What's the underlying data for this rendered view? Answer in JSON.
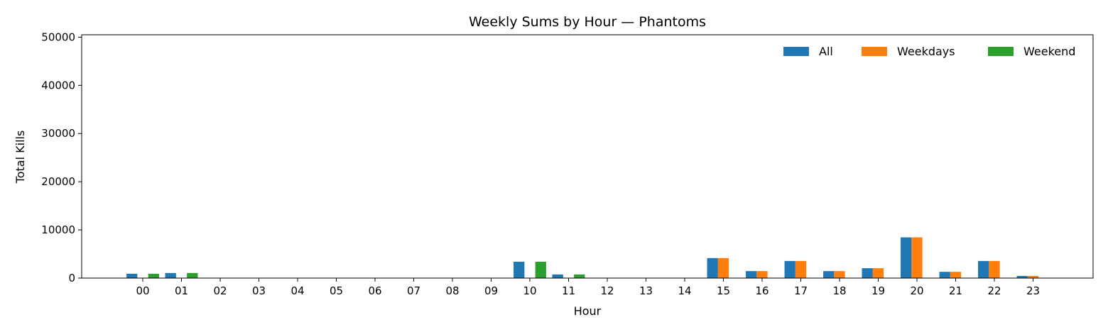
{
  "chart_data": {
    "type": "bar",
    "title": "Weekly Sums by Hour — Phantoms",
    "xlabel": "Hour",
    "ylabel": "Total Kills",
    "ylim": [
      0,
      50500
    ],
    "yticks": [
      0,
      10000,
      20000,
      30000,
      40000,
      50000
    ],
    "grid": false,
    "legend_position": "top-right",
    "categories": [
      "00",
      "01",
      "02",
      "03",
      "04",
      "05",
      "06",
      "07",
      "08",
      "09",
      "10",
      "11",
      "12",
      "13",
      "14",
      "15",
      "16",
      "17",
      "18",
      "19",
      "20",
      "21",
      "22",
      "23"
    ],
    "series": [
      {
        "name": "All",
        "color": "#1f77b4",
        "values": [
          900,
          1050,
          0,
          0,
          0,
          0,
          0,
          0,
          0,
          0,
          3400,
          750,
          0,
          0,
          0,
          4150,
          1450,
          3550,
          1450,
          2050,
          8450,
          1300,
          3550,
          450
        ]
      },
      {
        "name": "Weekdays",
        "color": "#ff7f0e",
        "values": [
          0,
          0,
          0,
          0,
          0,
          0,
          0,
          0,
          0,
          0,
          0,
          0,
          0,
          0,
          0,
          4150,
          1450,
          3550,
          1450,
          2050,
          8450,
          1300,
          3550,
          450
        ]
      },
      {
        "name": "Weekend",
        "color": "#2ca02c",
        "values": [
          900,
          1050,
          0,
          0,
          0,
          0,
          0,
          0,
          0,
          0,
          3400,
          750,
          0,
          0,
          0,
          0,
          0,
          0,
          0,
          0,
          0,
          0,
          0,
          0
        ]
      }
    ]
  }
}
